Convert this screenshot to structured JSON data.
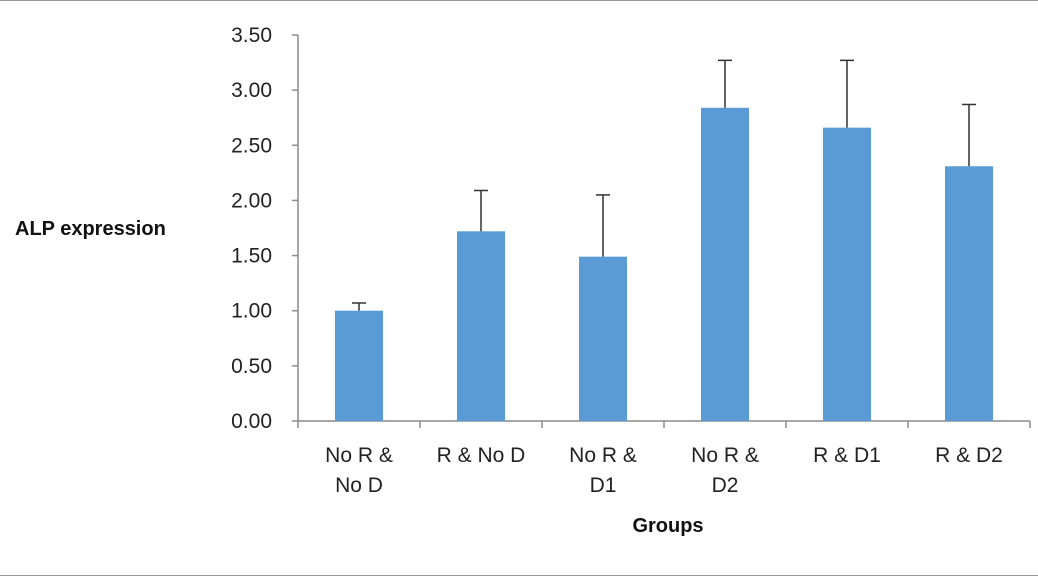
{
  "chart_data": {
    "type": "bar",
    "title": "",
    "xlabel": "Groups",
    "ylabel": "ALP expression",
    "categories": [
      [
        "No R &",
        "No D"
      ],
      [
        "R & No D"
      ],
      [
        "No R &",
        "D1"
      ],
      [
        "No R &",
        "D2"
      ],
      [
        "R & D1"
      ],
      [
        "R & D2"
      ]
    ],
    "values": [
      1.0,
      1.72,
      1.49,
      2.84,
      2.66,
      2.31
    ],
    "error_upper": [
      0.07,
      0.37,
      0.56,
      0.43,
      0.61,
      0.56
    ],
    "ylim": [
      0,
      3.5
    ],
    "yticks": [
      "0.00",
      "0.50",
      "1.00",
      "1.50",
      "2.00",
      "2.50",
      "3.00",
      "3.50"
    ],
    "grid": false,
    "legend": "none",
    "bar_color": "#5b9bd5",
    "axis_color": "#8c8c8c"
  }
}
